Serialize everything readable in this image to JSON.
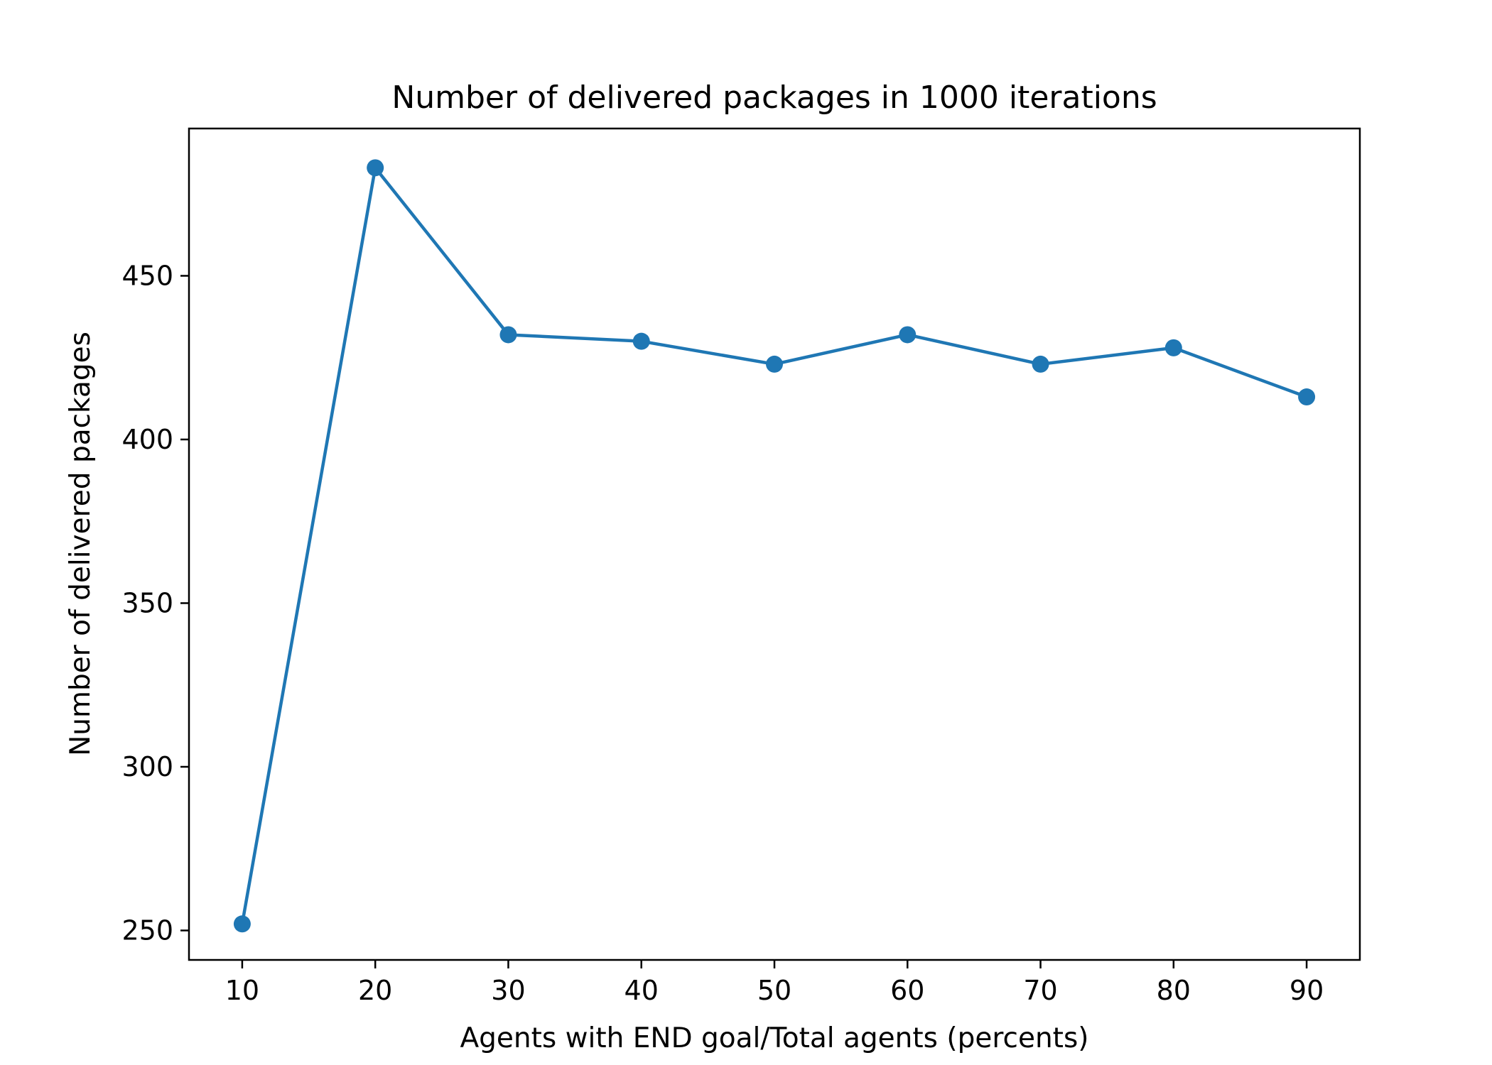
{
  "chart_data": {
    "type": "line",
    "title": "Number of delivered packages in 1000 iterations",
    "xlabel": "Agents with END goal/Total agents (percents)",
    "ylabel": "Number of delivered packages",
    "x": [
      10,
      20,
      30,
      40,
      50,
      60,
      70,
      80,
      90
    ],
    "series": [
      {
        "values": [
          252,
          483,
          432,
          430,
          423,
          432,
          423,
          428,
          413
        ]
      }
    ],
    "xlim": [
      6,
      94
    ],
    "ylim": [
      241,
      495
    ],
    "xticks": [
      10,
      20,
      30,
      40,
      50,
      60,
      70,
      80,
      90
    ],
    "yticks": [
      250,
      300,
      350,
      400,
      450
    ],
    "grid": false,
    "legend": "none",
    "color": "#1f77b4"
  }
}
